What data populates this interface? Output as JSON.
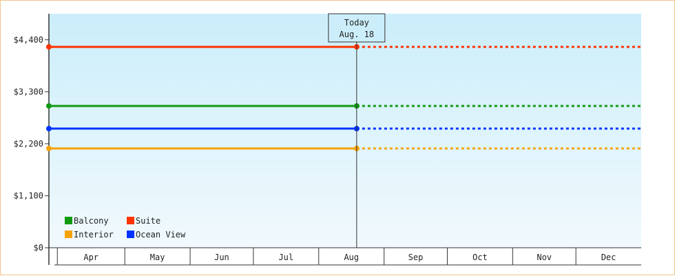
{
  "chart_data": {
    "type": "line",
    "title": "",
    "xlabel": "",
    "ylabel": "",
    "x_axis": {
      "domain": [
        "2024-03-25",
        "2024-12-31"
      ],
      "months": [
        {
          "label": "Apr",
          "start": "2024-03-29",
          "end": "2024-04-30"
        },
        {
          "label": "May",
          "start": "2024-04-30",
          "end": "2024-05-31"
        },
        {
          "label": "Jun",
          "start": "2024-05-31",
          "end": "2024-06-30"
        },
        {
          "label": "Jul",
          "start": "2024-06-30",
          "end": "2024-07-31"
        },
        {
          "label": "Aug",
          "start": "2024-07-31",
          "end": "2024-08-31"
        },
        {
          "label": "Sep",
          "start": "2024-08-31",
          "end": "2024-09-30"
        },
        {
          "label": "Oct",
          "start": "2024-09-30",
          "end": "2024-10-31"
        },
        {
          "label": "Nov",
          "start": "2024-10-31",
          "end": "2024-11-30"
        },
        {
          "label": "Dec",
          "start": "2024-11-30",
          "end": "2024-12-31"
        }
      ]
    },
    "y_axis": {
      "ylim": [
        0,
        4950
      ],
      "ticks": [
        {
          "value": 0,
          "label": "$0"
        },
        {
          "value": 1100,
          "label": "$1,100"
        },
        {
          "value": 2200,
          "label": "$2,200"
        },
        {
          "value": 3300,
          "label": "$3,300"
        },
        {
          "value": 4400,
          "label": "$4,400"
        }
      ]
    },
    "today": {
      "date": "2024-08-18",
      "line1": "Today",
      "line2": "Aug. 18"
    },
    "series": [
      {
        "name": "Suite",
        "color": "#ff3300",
        "start": "2024-03-25",
        "value": 4250
      },
      {
        "name": "Balcony",
        "color": "#119911",
        "start": "2024-03-25",
        "value": 3000
      },
      {
        "name": "Ocean View",
        "color": "#0033ff",
        "start": "2024-03-25",
        "value": 2520
      },
      {
        "name": "Interior",
        "color": "#f5a30a",
        "start": "2024-03-25",
        "value": 2100
      }
    ],
    "legend": {
      "placement": "bottom-left",
      "order": [
        "Balcony",
        "Suite",
        "Interior",
        "Ocean View"
      ]
    },
    "grid": false,
    "colors": {
      "plot_top": "#cbeefa",
      "plot_bottom": "#f1f9fd",
      "axis": "#333333",
      "border": "#f0c48c"
    }
  }
}
